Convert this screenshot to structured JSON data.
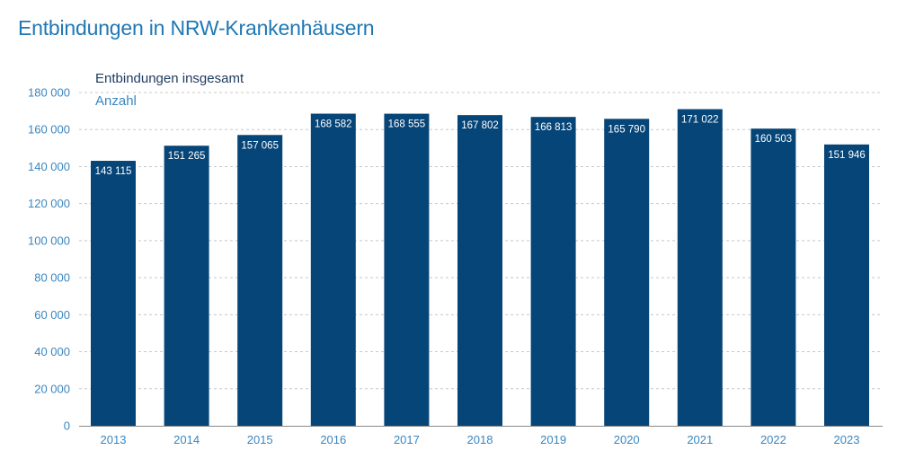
{
  "title": "Entbindungen in NRW-Krankenhäusern",
  "chart_data": {
    "type": "bar",
    "title": "Entbindungen in NRW-Krankenhäusern",
    "series_label": "Entbindungen insgesamt",
    "unit_label": "Anzahl",
    "categories": [
      "2013",
      "2014",
      "2015",
      "2016",
      "2017",
      "2018",
      "2019",
      "2020",
      "2021",
      "2022",
      "2023"
    ],
    "values": [
      143115,
      151265,
      157065,
      168582,
      168555,
      167802,
      166813,
      165790,
      171022,
      160503,
      151946
    ],
    "value_labels": [
      "143 115",
      "151 265",
      "157 065",
      "168 582",
      "168 555",
      "167 802",
      "166 813",
      "165 790",
      "171 022",
      "160 503",
      "151 946"
    ],
    "yticks": [
      0,
      20000,
      40000,
      60000,
      80000,
      100000,
      120000,
      140000,
      160000,
      180000
    ],
    "ytick_labels": [
      "0",
      "20 000",
      "40 000",
      "60 000",
      "80 000",
      "100 000",
      "120 000",
      "140 000",
      "160 000",
      "180 000"
    ],
    "ylim": [
      0,
      180000
    ],
    "grid": true,
    "colors": {
      "bar": "#064578",
      "title": "#1f78b4",
      "tick": "#3a86c0"
    }
  }
}
